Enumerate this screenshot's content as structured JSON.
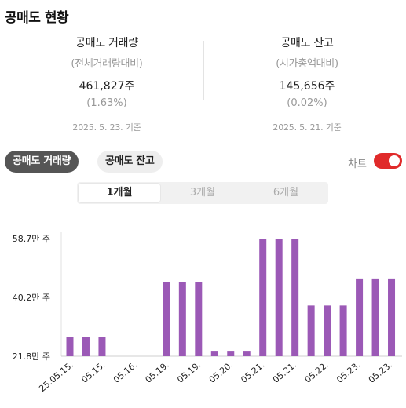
{
  "header": {
    "title": "공매도 현황"
  },
  "stats": {
    "volume": {
      "label": "공매도 거래량",
      "sub": "(전체거래량대비)",
      "value": "461,827주",
      "pct": "(1.63%)",
      "date": "2025. 5. 23. 기준"
    },
    "balance": {
      "label": "공매도 잔고",
      "sub": "(시가총액대비)",
      "value": "145,656주",
      "pct": "(0.02%)",
      "date": "2025. 5. 21. 기준"
    }
  },
  "tabs": {
    "volume": "공매도 거래량",
    "balance": "공매도 잔고"
  },
  "chart_toggle": {
    "label": "차트",
    "on": true
  },
  "periods": [
    "1개월",
    "3개월",
    "6개월"
  ],
  "selected_period": "1개월",
  "colors": {
    "bar": "#9b59b6",
    "toggle": "#e02a2a"
  },
  "chart_data": {
    "type": "bar",
    "y_tick_labels": [
      "58.7만 주",
      "40.2만 주",
      "21.8만 주"
    ],
    "y_ticks": [
      587000,
      402000,
      218000
    ],
    "ylim": [
      218000,
      587000
    ],
    "x_tick_labels": [
      "25.05.15.",
      "05.15.",
      "05.16.",
      "05.19.",
      "05.19.",
      "05.20.",
      "05.21.",
      "05.21.",
      "05.22.",
      "05.23.",
      "05.23."
    ],
    "values": [
      278000,
      278000,
      278000,
      218000,
      218000,
      218000,
      450000,
      450000,
      450000,
      235000,
      235000,
      235000,
      587000,
      587000,
      587000,
      377000,
      377000,
      377000,
      461827,
      461827,
      461827
    ]
  }
}
